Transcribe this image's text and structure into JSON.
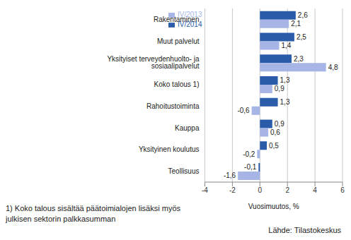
{
  "chart_data": {
    "type": "bar",
    "orientation": "horizontal",
    "categories": [
      "Rakentaminen",
      "Muut palvelut",
      "Yksityiset terveydenhuolto- ja sosiaalipalvelut",
      "Koko talous 1)",
      "Rahoitustoiminta",
      "Kauppa",
      "Yksityinen koulutus",
      "Teollisuus"
    ],
    "series": [
      {
        "name": "IV/2014",
        "color": "#2a5caa",
        "values": [
          2.6,
          2.5,
          2.3,
          1.3,
          1.3,
          0.9,
          0.5,
          -0.1
        ],
        "value_labels": [
          "2,6",
          "2,5",
          "2,3",
          "1,3",
          "1,3",
          "0,9",
          "0,5",
          "-0,1"
        ]
      },
      {
        "name": "IV/2013",
        "color": "#a6b4e6",
        "values": [
          2.1,
          1.4,
          4.8,
          0.9,
          -0.6,
          0.6,
          -0.2,
          -1.6
        ],
        "value_labels": [
          "2,1",
          "1,4",
          "4,8",
          "0,9",
          "-0,6",
          "0,6",
          "-0,2",
          "-1,6"
        ]
      }
    ],
    "xlim": [
      -4,
      6
    ],
    "xticks": [
      -4,
      -2,
      0,
      2,
      4,
      6
    ],
    "x_label": "Vuosimuutos, %",
    "grid": true,
    "legend": "upper left",
    "data_labels": true,
    "annotations": [
      "1) Koko talous sisältää päätoimialojen lisäksi myös julkisen sektorin palkkasumman",
      "Lähde: Tilastokeskus"
    ]
  }
}
